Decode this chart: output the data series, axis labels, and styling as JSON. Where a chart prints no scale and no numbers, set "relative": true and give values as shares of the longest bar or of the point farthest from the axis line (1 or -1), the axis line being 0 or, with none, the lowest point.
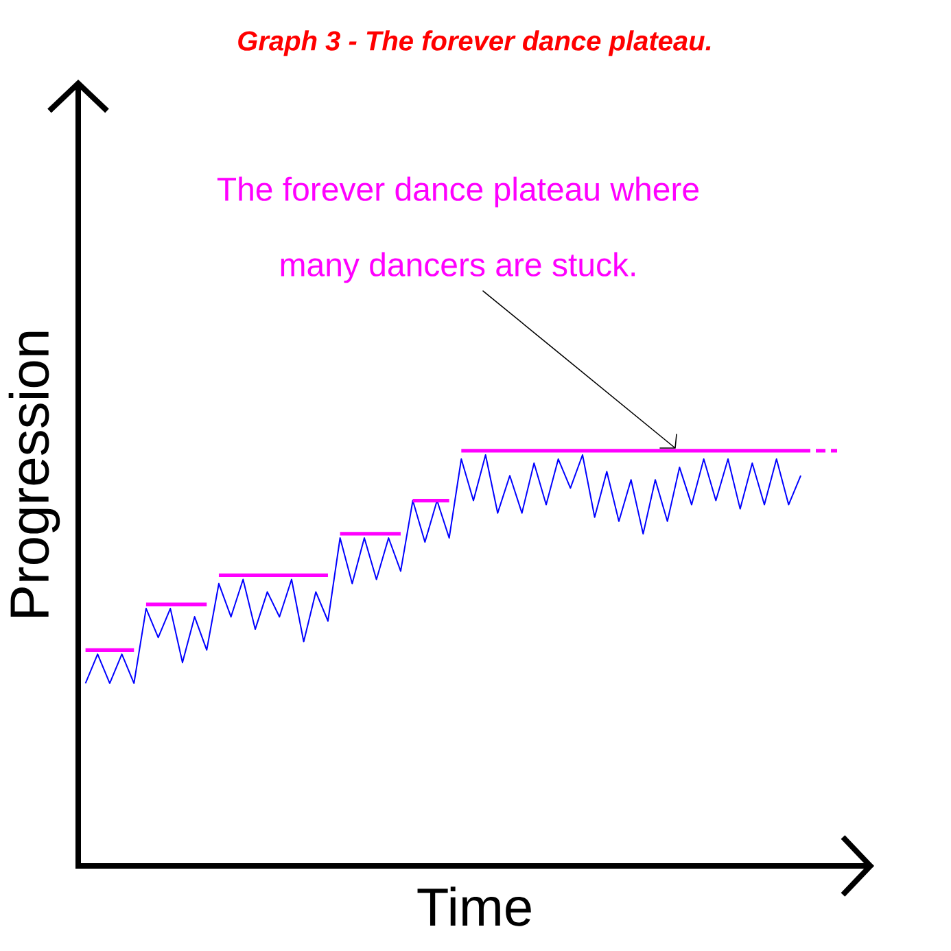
{
  "chart_data": {
    "type": "line",
    "relative": true,
    "title": "Graph 3 - The forever dance plateau.",
    "xlabel": "Time",
    "ylabel": "Progression",
    "annotations": [
      "The forever dance plateau where many dancers are stuck."
    ],
    "categories": [
      null,
      null,
      null,
      null,
      null,
      null,
      null,
      null,
      null,
      null,
      null,
      null,
      null,
      null,
      null,
      null,
      null,
      null,
      null,
      null,
      null,
      null,
      null,
      null,
      null,
      null,
      null,
      null,
      null,
      null,
      null,
      null,
      null,
      null,
      null,
      null,
      null,
      null,
      null,
      null,
      null,
      null,
      null,
      null,
      null,
      null,
      null,
      null,
      null,
      null,
      null,
      null,
      null,
      null,
      null,
      null,
      null,
      null,
      null,
      null,
      null,
      null,
      null
    ],
    "series": [
      {
        "color": "#0000ff",
        "values": [
          0.44,
          0.51,
          0.44,
          0.51,
          0.44,
          0.62,
          0.55,
          0.62,
          0.49,
          0.6,
          0.52,
          0.68,
          0.6,
          0.69,
          0.57,
          0.66,
          0.6,
          0.69,
          0.54,
          0.66,
          0.59,
          0.79,
          0.68,
          0.79,
          0.69,
          0.79,
          0.71,
          0.88,
          0.78,
          0.88,
          0.79,
          0.98,
          0.88,
          0.99,
          0.85,
          0.94,
          0.85,
          0.97,
          0.87,
          0.98,
          0.91,
          0.99,
          0.84,
          0.95,
          0.83,
          0.93,
          0.8,
          0.93,
          0.83,
          0.96,
          0.87,
          0.98,
          0.88,
          0.98,
          0.86,
          0.97,
          0.87,
          0.98,
          0.87,
          0.94,
          null,
          null,
          null
        ]
      },
      {
        "color": "#ff00ff",
        "values": [
          0.52,
          0.52,
          0.52,
          0.52,
          0.52,
          null,
          null,
          null,
          null,
          null,
          null,
          null,
          null,
          null,
          null,
          null,
          null,
          null,
          null,
          null,
          null,
          null,
          null,
          null,
          null,
          null,
          null,
          null,
          null,
          null,
          null,
          null,
          null,
          null,
          null,
          null,
          null,
          null,
          null,
          null,
          null,
          null,
          null,
          null,
          null,
          null,
          null,
          null,
          null,
          null,
          null,
          null,
          null,
          null,
          null,
          null,
          null,
          null,
          null,
          null,
          null,
          null,
          null
        ]
      },
      {
        "color": "#ff00ff",
        "values": [
          null,
          null,
          null,
          null,
          null,
          0.63,
          0.63,
          0.63,
          0.63,
          0.63,
          0.63,
          null,
          null,
          null,
          null,
          null,
          null,
          null,
          null,
          null,
          null,
          null,
          null,
          null,
          null,
          null,
          null,
          null,
          null,
          null,
          null,
          null,
          null,
          null,
          null,
          null,
          null,
          null,
          null,
          null,
          null,
          null,
          null,
          null,
          null,
          null,
          null,
          null,
          null,
          null,
          null,
          null,
          null,
          null,
          null,
          null,
          null,
          null,
          null,
          null,
          null,
          null,
          null
        ]
      },
      {
        "color": "#ff00ff",
        "values": [
          null,
          null,
          null,
          null,
          null,
          null,
          null,
          null,
          null,
          null,
          null,
          0.7,
          0.7,
          0.7,
          0.7,
          0.7,
          0.7,
          0.7,
          0.7,
          0.7,
          0.7,
          null,
          null,
          null,
          null,
          null,
          null,
          null,
          null,
          null,
          null,
          null,
          null,
          null,
          null,
          null,
          null,
          null,
          null,
          null,
          null,
          null,
          null,
          null,
          null,
          null,
          null,
          null,
          null,
          null,
          null,
          null,
          null,
          null,
          null,
          null,
          null,
          null,
          null,
          null,
          null,
          null,
          null
        ]
      },
      {
        "color": "#ff00ff",
        "values": [
          null,
          null,
          null,
          null,
          null,
          null,
          null,
          null,
          null,
          null,
          null,
          null,
          null,
          null,
          null,
          null,
          null,
          null,
          null,
          null,
          null,
          0.8,
          0.8,
          0.8,
          0.8,
          0.8,
          0.8,
          null,
          null,
          null,
          null,
          null,
          null,
          null,
          null,
          null,
          null,
          null,
          null,
          null,
          null,
          null,
          null,
          null,
          null,
          null,
          null,
          null,
          null,
          null,
          null,
          null,
          null,
          null,
          null,
          null,
          null,
          null,
          null,
          null,
          null,
          null,
          null
        ]
      },
      {
        "color": "#ff00ff",
        "values": [
          null,
          null,
          null,
          null,
          null,
          null,
          null,
          null,
          null,
          null,
          null,
          null,
          null,
          null,
          null,
          null,
          null,
          null,
          null,
          null,
          null,
          null,
          null,
          null,
          null,
          null,
          null,
          0.88,
          0.88,
          0.88,
          0.88,
          null,
          null,
          null,
          null,
          null,
          null,
          null,
          null,
          null,
          null,
          null,
          null,
          null,
          null,
          null,
          null,
          null,
          null,
          null,
          null,
          null,
          null,
          null,
          null,
          null,
          null,
          null,
          null,
          null,
          null,
          null,
          null
        ]
      },
      {
        "color": "#ff00ff",
        "values": [
          null,
          null,
          null,
          null,
          null,
          null,
          null,
          null,
          null,
          null,
          null,
          null,
          null,
          null,
          null,
          null,
          null,
          null,
          null,
          null,
          null,
          null,
          null,
          null,
          null,
          null,
          null,
          null,
          null,
          null,
          null,
          1,
          1,
          1,
          1,
          1,
          1,
          1,
          1,
          1,
          1,
          1,
          1,
          1,
          1,
          1,
          1,
          1,
          1,
          1,
          1,
          1,
          1,
          1,
          1,
          1,
          1,
          1,
          1,
          1,
          null,
          null,
          null
        ]
      },
      {
        "color": "#ff00ff",
        "line_style": "dashed",
        "values": [
          null,
          null,
          null,
          null,
          null,
          null,
          null,
          null,
          null,
          null,
          null,
          null,
          null,
          null,
          null,
          null,
          null,
          null,
          null,
          null,
          null,
          null,
          null,
          null,
          null,
          null,
          null,
          null,
          null,
          null,
          null,
          null,
          null,
          null,
          null,
          null,
          null,
          null,
          null,
          null,
          null,
          null,
          null,
          null,
          null,
          null,
          null,
          null,
          null,
          null,
          null,
          null,
          null,
          null,
          null,
          null,
          null,
          null,
          null,
          1,
          1,
          1,
          1
        ]
      }
    ]
  }
}
